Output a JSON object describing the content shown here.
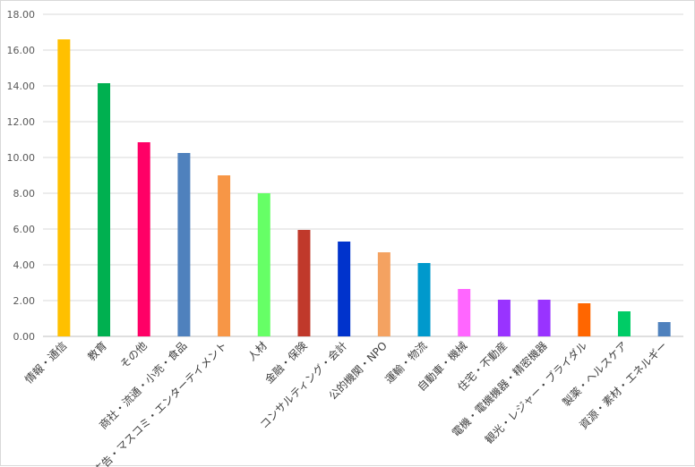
{
  "chart_data": {
    "type": "bar",
    "title": "",
    "xlabel": "",
    "ylabel": "",
    "ylim": [
      0,
      18
    ],
    "yticks": [
      "0.00",
      "2.00",
      "4.00",
      "6.00",
      "8.00",
      "10.00",
      "12.00",
      "14.00",
      "16.00",
      "18.00"
    ],
    "grid": true,
    "legend": "none",
    "categories": [
      "情報・通信",
      "教育",
      "その他",
      "商社・流通・小売・食品",
      "広告・マスコミ・エンターテイメント",
      "人材",
      "金融・保険",
      "コンサルティング・会計",
      "公的機関・NPO",
      "運輸・物流",
      "自動車・機械",
      "住宅・不動産",
      "電機・電機機器・精密機器",
      "観光・レジャー・ブライダル",
      "製薬・ヘルスケア",
      "資源・素材・エネルギー"
    ],
    "values": [
      16.6,
      14.15,
      10.85,
      10.25,
      9.0,
      8.0,
      5.95,
      5.3,
      4.7,
      4.1,
      2.65,
      2.05,
      2.05,
      1.85,
      1.4,
      0.8
    ],
    "colors": [
      "#ffc000",
      "#00b050",
      "#ff0066",
      "#4f81bd",
      "#f79646",
      "#66ff66",
      "#c0392b",
      "#0033cc",
      "#f4a261",
      "#0099cc",
      "#ff66ff",
      "#9933ff",
      "#9933ff",
      "#ff6600",
      "#00cc66",
      "#4f81bd"
    ]
  }
}
